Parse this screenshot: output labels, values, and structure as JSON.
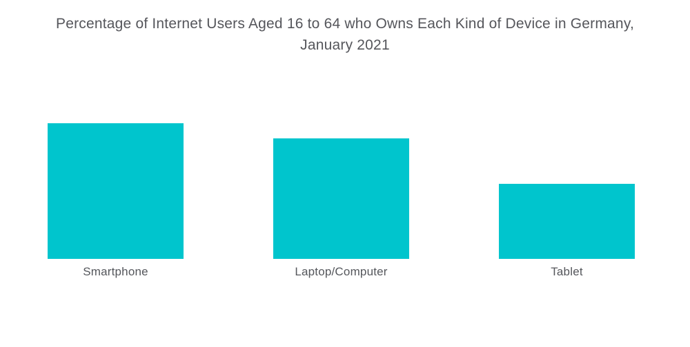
{
  "title": {
    "line1": "Percentage of Internet Users Aged 16 to 64 who Owns Each Kind of Device in Germany,",
    "line2": "January 2021"
  },
  "chart_data": {
    "type": "bar",
    "title": "Percentage of Internet Users Aged 16 to 64 who Owns Each Kind of Device in Germany, January 2021",
    "categories": [
      "Smartphone",
      "Laptop/Computer",
      "Tablet"
    ],
    "values": [
      81,
      72,
      45
    ],
    "unit": "%",
    "xlabel": "",
    "ylabel": "",
    "ylim": [
      0,
      100
    ],
    "grid": false,
    "legend": false,
    "value_labels_shown": false,
    "axes_shown": false,
    "bar_color": "#00c5cd",
    "title_color": "#55565b",
    "label_color": "#54565b",
    "background_color": "#ffffff"
  }
}
